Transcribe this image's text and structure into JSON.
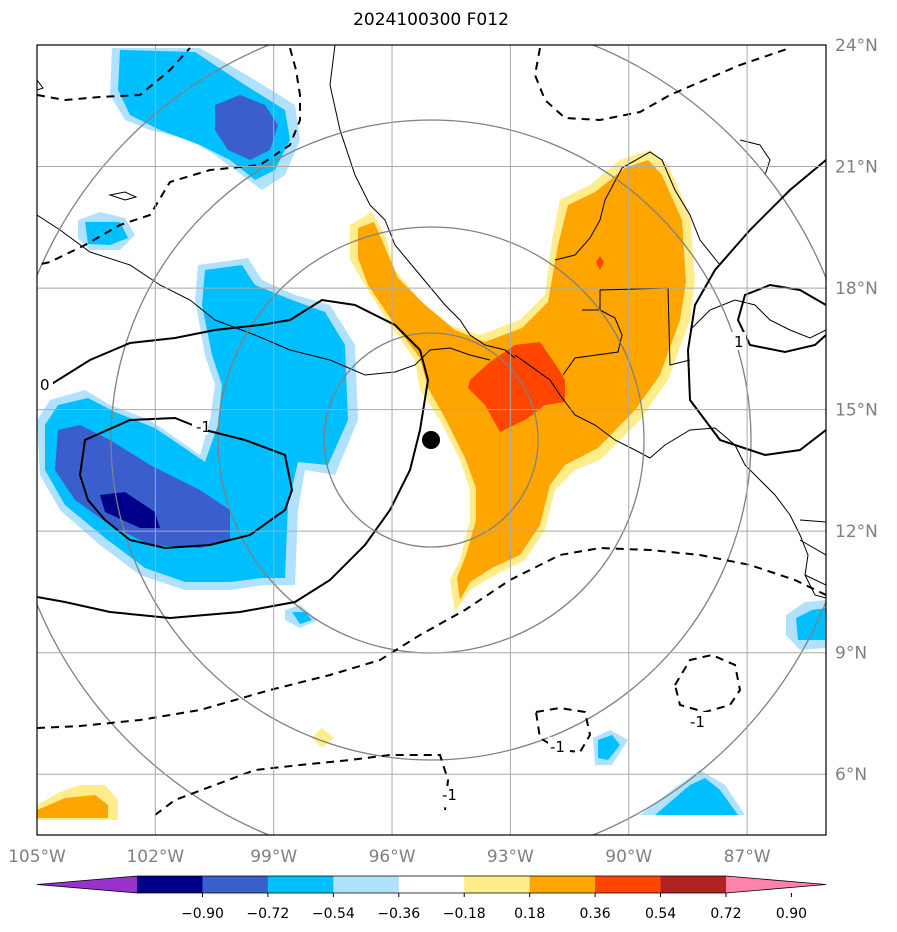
{
  "title": "2024100300 F012",
  "map": {
    "lon_range": [
      -105.0,
      -85.0
    ],
    "lat_range": [
      4.5,
      24.0
    ],
    "center_marker": {
      "lon": -95.3,
      "lat": 14.0
    },
    "lon_ticks": [
      "105°W",
      "102°W",
      "99°W",
      "96°W",
      "93°W",
      "90°W",
      "87°W"
    ],
    "lat_ticks": [
      "24°N",
      "21°N",
      "18°N",
      "15°N",
      "12°N",
      "9°N",
      "6°N"
    ],
    "grid": true,
    "range_rings": 4,
    "contour_labels": [
      "0",
      "-1",
      "1",
      "-1",
      "-1",
      "-1"
    ]
  },
  "colorbar": {
    "tick_labels": [
      "−0.90",
      "−0.72",
      "−0.54",
      "−0.36",
      "−0.18",
      "0.18",
      "0.36",
      "0.54",
      "0.72",
      "0.90"
    ],
    "colors": [
      "#9932cc",
      "#00008b",
      "#3a5fcd",
      "#00bfff",
      "#b0e2ff",
      "#ffffff",
      "#ffec8b",
      "#ffa500",
      "#ff4500",
      "#b22222",
      "#ff82ab"
    ]
  }
}
